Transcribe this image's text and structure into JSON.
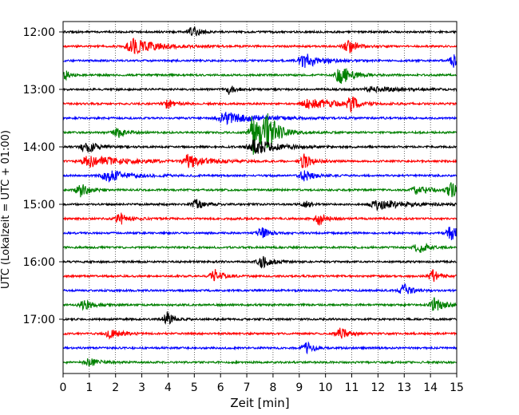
{
  "chart_data": {
    "type": "line",
    "xlabel": "Zeit  [min]",
    "ylabel": "UTC (Lokalzeit = UTC + 01:00)",
    "xlim": [
      0,
      15
    ],
    "x_ticks": [
      0,
      1,
      2,
      3,
      4,
      5,
      6,
      7,
      8,
      9,
      10,
      11,
      12,
      13,
      14,
      15
    ],
    "y_tick_labels": [
      "12:00",
      "13:00",
      "14:00",
      "15:00",
      "16:00",
      "17:00"
    ],
    "trace_interval_min": 15,
    "start_time": "12:00",
    "vertical_grid": true,
    "grid_style": "dotted",
    "colors": [
      "#000000",
      "#ff0000",
      "#0000ff",
      "#008000"
    ],
    "series": [
      {
        "start": "12:00",
        "color": "#000000",
        "events": [
          {
            "t": 4.95,
            "a": 7,
            "w": 0.25
          }
        ]
      },
      {
        "start": "12:15",
        "color": "#ff0000",
        "events": [
          {
            "t": 2.7,
            "a": 9,
            "w": 0.9
          },
          {
            "t": 10.9,
            "a": 9,
            "w": 0.3
          }
        ]
      },
      {
        "start": "12:30",
        "color": "#0000ff",
        "events": [
          {
            "t": 9.2,
            "a": 9,
            "w": 0.6
          },
          {
            "t": 14.9,
            "a": 8,
            "w": 0.2
          }
        ]
      },
      {
        "start": "12:45",
        "color": "#008000",
        "events": [
          {
            "t": 0.1,
            "a": 6,
            "w": 0.15
          },
          {
            "t": 10.6,
            "a": 12,
            "w": 0.4
          }
        ]
      },
      {
        "start": "13:00",
        "color": "#000000",
        "events": [
          {
            "t": 6.3,
            "a": 6,
            "w": 0.25
          },
          {
            "t": 11.8,
            "a": 3,
            "w": 1.2
          }
        ]
      },
      {
        "start": "13:15",
        "color": "#ff0000",
        "events": [
          {
            "t": 4.0,
            "a": 6,
            "w": 0.3
          },
          {
            "t": 9.4,
            "a": 6,
            "w": 1.2
          },
          {
            "t": 11.0,
            "a": 8,
            "w": 0.25
          }
        ]
      },
      {
        "start": "13:30",
        "color": "#0000ff",
        "events": [
          {
            "t": 6.2,
            "a": 7,
            "w": 1.2
          }
        ]
      },
      {
        "start": "13:45",
        "color": "#008000",
        "events": [
          {
            "t": 2.1,
            "a": 7,
            "w": 0.3
          },
          {
            "t": 7.3,
            "a": 32,
            "w": 0.25
          },
          {
            "t": 7.8,
            "a": 22,
            "w": 0.4
          }
        ]
      },
      {
        "start": "14:00",
        "color": "#000000",
        "events": [
          {
            "t": 0.9,
            "a": 8,
            "w": 0.35
          },
          {
            "t": 7.3,
            "a": 9,
            "w": 0.8
          }
        ]
      },
      {
        "start": "14:15",
        "color": "#ff0000",
        "events": [
          {
            "t": 1.0,
            "a": 7,
            "w": 1.2
          },
          {
            "t": 4.8,
            "a": 8,
            "w": 0.7
          },
          {
            "t": 9.2,
            "a": 9,
            "w": 0.3
          }
        ]
      },
      {
        "start": "14:30",
        "color": "#0000ff",
        "events": [
          {
            "t": 1.7,
            "a": 7,
            "w": 0.8
          },
          {
            "t": 9.2,
            "a": 7,
            "w": 0.3
          }
        ]
      },
      {
        "start": "14:45",
        "color": "#008000",
        "events": [
          {
            "t": 0.7,
            "a": 9,
            "w": 0.3
          },
          {
            "t": 13.5,
            "a": 5,
            "w": 0.5
          },
          {
            "t": 14.8,
            "a": 9,
            "w": 0.25
          }
        ]
      },
      {
        "start": "15:00",
        "color": "#000000",
        "events": [
          {
            "t": 5.1,
            "a": 6,
            "w": 0.3
          },
          {
            "t": 9.3,
            "a": 4,
            "w": 0.15
          },
          {
            "t": 12.0,
            "a": 6,
            "w": 1.0
          }
        ]
      },
      {
        "start": "15:15",
        "color": "#ff0000",
        "events": [
          {
            "t": 2.2,
            "a": 7,
            "w": 0.3
          },
          {
            "t": 9.8,
            "a": 8,
            "w": 0.3
          }
        ]
      },
      {
        "start": "15:30",
        "color": "#0000ff",
        "events": [
          {
            "t": 7.6,
            "a": 7,
            "w": 0.25
          },
          {
            "t": 14.8,
            "a": 9,
            "w": 0.3
          }
        ]
      },
      {
        "start": "15:45",
        "color": "#008000",
        "events": [
          {
            "t": 13.6,
            "a": 7,
            "w": 0.3
          }
        ]
      },
      {
        "start": "16:00",
        "color": "#000000",
        "events": [
          {
            "t": 7.6,
            "a": 7,
            "w": 0.35
          }
        ]
      },
      {
        "start": "16:15",
        "color": "#ff0000",
        "events": [
          {
            "t": 5.8,
            "a": 8,
            "w": 0.25
          },
          {
            "t": 14.1,
            "a": 7,
            "w": 0.3
          }
        ]
      },
      {
        "start": "16:30",
        "color": "#0000ff",
        "events": [
          {
            "t": 13.0,
            "a": 8,
            "w": 0.25
          }
        ]
      },
      {
        "start": "16:45",
        "color": "#008000",
        "events": [
          {
            "t": 0.8,
            "a": 7,
            "w": 0.3
          },
          {
            "t": 14.2,
            "a": 9,
            "w": 0.35
          }
        ]
      },
      {
        "start": "17:00",
        "color": "#000000",
        "events": [
          {
            "t": 4.0,
            "a": 9,
            "w": 0.2
          }
        ]
      },
      {
        "start": "17:15",
        "color": "#ff0000",
        "events": [
          {
            "t": 1.8,
            "a": 6,
            "w": 0.4
          },
          {
            "t": 10.6,
            "a": 8,
            "w": 0.25
          }
        ]
      },
      {
        "start": "17:30",
        "color": "#0000ff",
        "events": [
          {
            "t": 9.3,
            "a": 7,
            "w": 0.25
          }
        ]
      },
      {
        "start": "17:45",
        "color": "#008000",
        "events": [
          {
            "t": 1.0,
            "a": 5,
            "w": 0.4
          }
        ]
      }
    ]
  }
}
